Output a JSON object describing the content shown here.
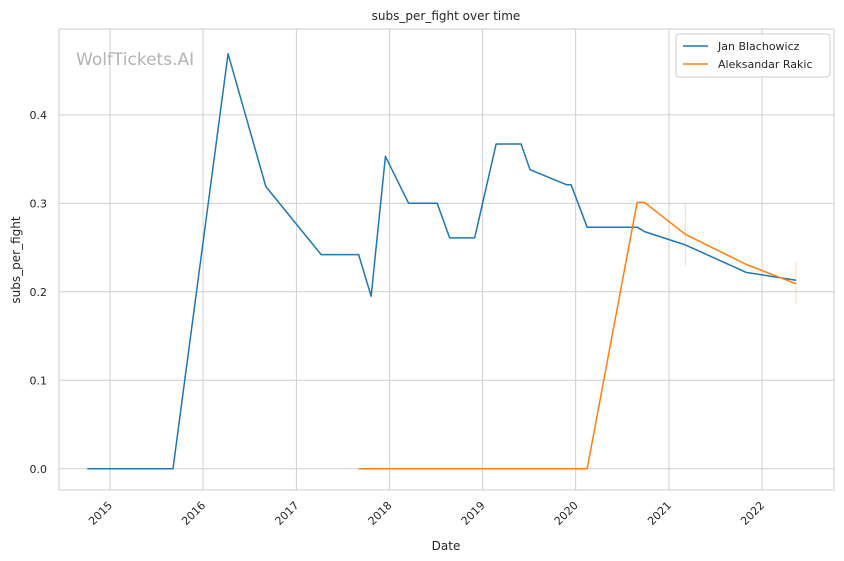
{
  "chart_data": {
    "type": "line",
    "title": "subs_per_fight over time",
    "xlabel": "Date",
    "ylabel": "subs_per_fight",
    "watermark": "WolfTickets.AI",
    "xlim": [
      "2014-06-15",
      "2022-10-10"
    ],
    "ylim": [
      -0.024,
      0.497
    ],
    "x_ticks": [
      "2015-01-01",
      "2016-01-01",
      "2017-01-01",
      "2018-01-01",
      "2019-01-01",
      "2020-01-01",
      "2021-01-01",
      "2022-01-01"
    ],
    "x_tick_labels": [
      "2015",
      "2016",
      "2017",
      "2018",
      "2019",
      "2020",
      "2021",
      "2022"
    ],
    "y_ticks": [
      0.0,
      0.1,
      0.2,
      0.3,
      0.4
    ],
    "y_tick_labels": [
      "0.0",
      "0.1",
      "0.2",
      "0.3",
      "0.4"
    ],
    "grid": true,
    "legend_position": "top-right",
    "series": [
      {
        "name": "Jan Blachowicz",
        "color": "#1f77b4",
        "x": [
          "2014-10-04",
          "2015-09-05",
          "2016-04-08",
          "2016-09-03",
          "2017-04-08",
          "2017-09-02",
          "2017-10-21",
          "2017-12-16",
          "2018-03-17",
          "2018-07-07",
          "2018-08-25",
          "2018-12-01",
          "2019-02-23",
          "2019-06-01",
          "2019-07-06",
          "2019-11-26",
          "2019-12-14",
          "2020-02-15",
          "2020-08-29",
          "2020-09-27",
          "2021-03-06",
          "2021-10-30",
          "2022-05-14"
        ],
        "y": [
          0.0,
          0.0,
          0.469,
          0.319,
          0.242,
          0.242,
          0.195,
          0.353,
          0.3,
          0.3,
          0.261,
          0.261,
          0.367,
          0.367,
          0.338,
          0.321,
          0.321,
          0.273,
          0.273,
          0.268,
          0.253,
          0.222,
          0.213
        ]
      },
      {
        "name": "Aleksandar Rakic",
        "color": "#ff7f0e",
        "x": [
          "2017-09-02",
          "2020-02-15",
          "2020-08-29",
          "2020-09-27",
          "2021-03-06",
          "2021-10-30",
          "2022-05-14"
        ],
        "y": [
          0.0,
          0.0,
          0.301,
          0.301,
          0.265,
          0.231,
          0.209
        ],
        "error_bars": [
          {
            "x": "2021-03-06",
            "low": 0.23,
            "high": 0.3
          },
          {
            "x": "2022-05-14",
            "low": 0.186,
            "high": 0.233
          }
        ]
      }
    ]
  }
}
